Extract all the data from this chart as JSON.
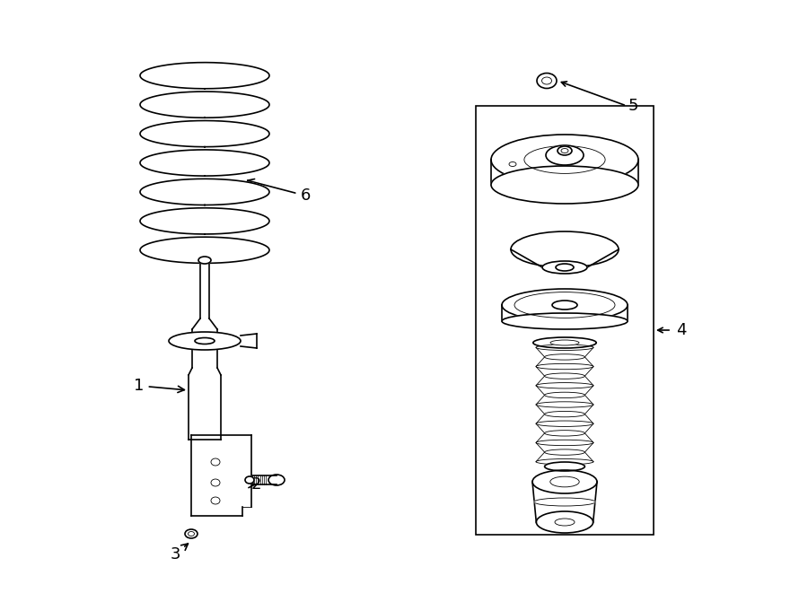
{
  "bg_color": "#ffffff",
  "line_color": "#000000",
  "line_width": 1.2,
  "thin_line": 0.6,
  "fig_width": 9.0,
  "fig_height": 6.61,
  "dpi": 100
}
